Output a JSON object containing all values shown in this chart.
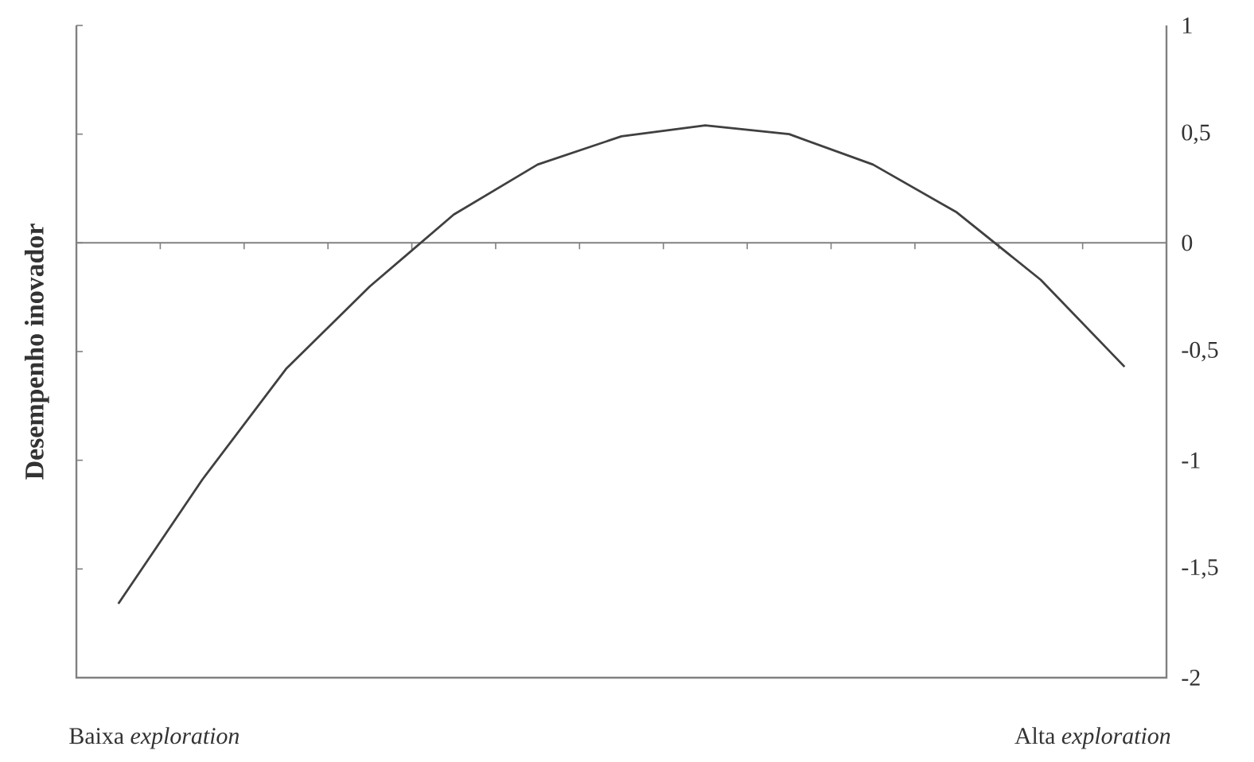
{
  "chart_data": {
    "type": "line",
    "ylabel": "Desempenho inovador",
    "annotations": [
      "Baixa *exploration*",
      "Alta *exploration*"
    ],
    "categories": [
      null,
      null,
      null,
      null,
      null,
      null,
      null,
      null,
      null,
      null,
      null,
      null,
      null
    ],
    "values": [
      -1.66,
      -1.09,
      -0.58,
      -0.2,
      0.13,
      0.36,
      0.49,
      0.54,
      0.5,
      0.36,
      0.14,
      -0.17,
      -0.57
    ],
    "color": "#404040",
    "ylim": [
      -2,
      1
    ],
    "yticks": [
      {
        "value": -2,
        "label": "-2"
      },
      {
        "value": -1.5,
        "label": "-1,5"
      },
      {
        "value": -1,
        "label": "-1"
      },
      {
        "value": -0.5,
        "label": "-0,5"
      },
      {
        "value": 0,
        "label": "0"
      },
      {
        "value": 0.5,
        "label": "0,5"
      },
      {
        "value": 1,
        "label": "1"
      }
    ],
    "tick_labels": "y"
  }
}
